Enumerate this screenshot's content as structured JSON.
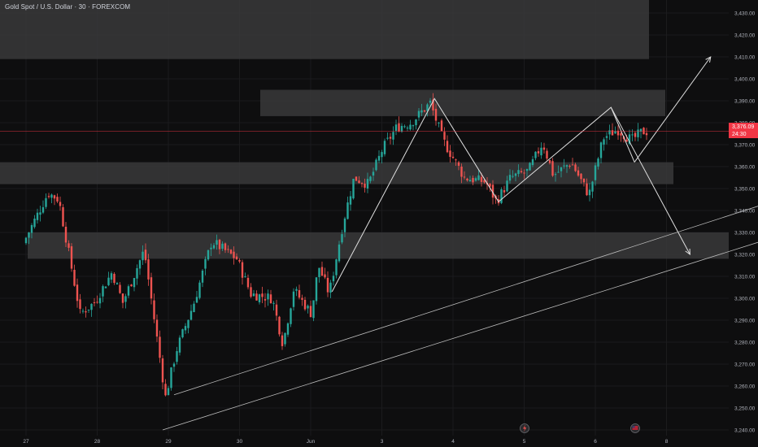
{
  "header": {
    "symbol_title": "Gold Spot / U.S. Dollar · 30 · FOREXCOM"
  },
  "last_price": {
    "value": "3,376.09",
    "countdown": "24:30",
    "color": "#f23645"
  },
  "colors": {
    "background": "#0e0e0f",
    "up_candle": "#26a69a",
    "down_candle": "#ef5350",
    "zone_fill": "#3a3a3c",
    "drawing_line": "#e0e0e0",
    "price_line": "#f23645"
  },
  "icons": {
    "lightning_event": "lightning-icon",
    "flag_event": "flag-icon"
  },
  "chart_data": {
    "type": "candlestick",
    "title": "Gold Spot / U.S. Dollar · 30 · FOREXCOM",
    "ylim": [
      3238,
      3436
    ],
    "y_ticks": [
      3240,
      3250,
      3260,
      3270,
      3280,
      3290,
      3300,
      3310,
      3320,
      3330,
      3340,
      3350,
      3360,
      3370,
      3380,
      3390,
      3400,
      3410,
      3420,
      3430
    ],
    "y_tick_labels": [
      "3,240.00",
      "3,250.00",
      "3,260.00",
      "3,270.00",
      "3,280.00",
      "3,290.00",
      "3,300.00",
      "3,310.00",
      "3,320.00",
      "3,330.00",
      "3,340.00",
      "3,350.00",
      "3,360.00",
      "3,370.00",
      "3,380.00",
      "3,390.00",
      "3,400.00",
      "3,410.00",
      "3,420.00",
      "3,430.00"
    ],
    "x_ticks": [
      "27",
      "28",
      "29",
      "30",
      "Jun",
      "3",
      "4",
      "5",
      "6",
      "8"
    ],
    "last_price": 3376.09,
    "zones": [
      {
        "name": "supply-zone-top",
        "y_low": 3409,
        "y_high": 3436
      },
      {
        "name": "resistance-zone",
        "y_low": 3383,
        "y_high": 3395
      },
      {
        "name": "mid-zone",
        "y_low": 3352,
        "y_high": 3362
      },
      {
        "name": "support-zone",
        "y_low": 3318,
        "y_high": 3330
      }
    ],
    "price_path": [
      {
        "t": 0,
        "p": 3325
      },
      {
        "t": 0.35,
        "p": 3348
      },
      {
        "t": 0.5,
        "p": 3345
      },
      {
        "t": 0.8,
        "p": 3293
      },
      {
        "t": 1.0,
        "p": 3298
      },
      {
        "t": 1.25,
        "p": 3312
      },
      {
        "t": 1.4,
        "p": 3298
      },
      {
        "t": 1.7,
        "p": 3322
      },
      {
        "t": 2.0,
        "p": 3255
      },
      {
        "t": 2.15,
        "p": 3276
      },
      {
        "t": 2.4,
        "p": 3298
      },
      {
        "t": 2.65,
        "p": 3326
      },
      {
        "t": 3.0,
        "p": 3318
      },
      {
        "t": 3.2,
        "p": 3302
      },
      {
        "t": 3.5,
        "p": 3300
      },
      {
        "t": 3.65,
        "p": 3279
      },
      {
        "t": 3.8,
        "p": 3304
      },
      {
        "t": 4.05,
        "p": 3293
      },
      {
        "t": 4.15,
        "p": 3315
      },
      {
        "t": 4.3,
        "p": 3302
      },
      {
        "t": 4.5,
        "p": 3335
      },
      {
        "t": 4.65,
        "p": 3355
      },
      {
        "t": 4.85,
        "p": 3352
      },
      {
        "t": 5.05,
        "p": 3368
      },
      {
        "t": 5.25,
        "p": 3378
      },
      {
        "t": 5.45,
        "p": 3380
      },
      {
        "t": 5.72,
        "p": 3389
      },
      {
        "t": 5.9,
        "p": 3372
      },
      {
        "t": 6.2,
        "p": 3355
      },
      {
        "t": 6.5,
        "p": 3353
      },
      {
        "t": 6.65,
        "p": 3344
      },
      {
        "t": 6.85,
        "p": 3355
      },
      {
        "t": 7.1,
        "p": 3358
      },
      {
        "t": 7.3,
        "p": 3371
      },
      {
        "t": 7.45,
        "p": 3356
      },
      {
        "t": 7.7,
        "p": 3362
      },
      {
        "t": 7.95,
        "p": 3347
      },
      {
        "t": 8.15,
        "p": 3373
      },
      {
        "t": 8.35,
        "p": 3377
      },
      {
        "t": 8.55,
        "p": 3372
      },
      {
        "t": 8.7,
        "p": 3376
      }
    ],
    "drawings": {
      "zigzag": [
        {
          "t": 4.3,
          "p": 3303
        },
        {
          "t": 5.74,
          "p": 3391
        },
        {
          "t": 6.64,
          "p": 3344
        },
        {
          "t": 8.22,
          "p": 3387
        },
        {
          "t": 8.55,
          "p": 3362
        }
      ],
      "arrow_up_end": {
        "t": 9.62,
        "p": 3410
      },
      "arrow_down_end": {
        "t": 9.33,
        "p": 3320
      },
      "trendline_1": [
        {
          "t": 2.08,
          "p": 3256
        },
        {
          "t": 10.67,
          "p": 3346
        }
      ],
      "trendline_2": [
        {
          "t": 1.92,
          "p": 3240
        },
        {
          "t": 12.0,
          "p": 3343
        }
      ]
    }
  }
}
